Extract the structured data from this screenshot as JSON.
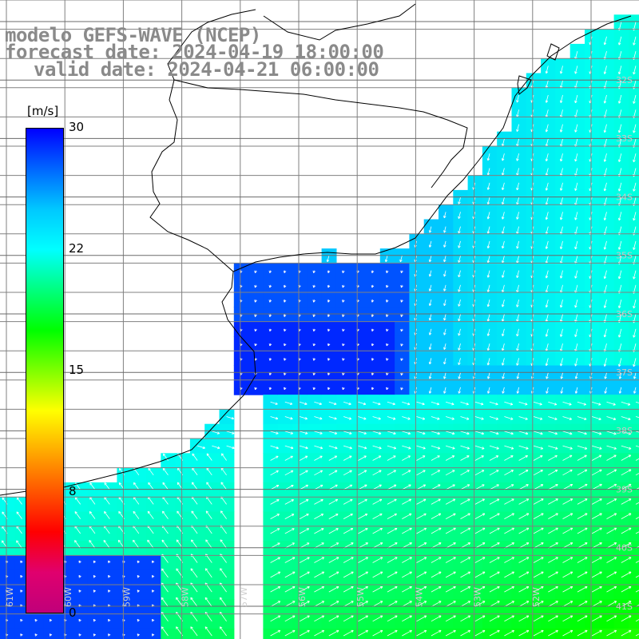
{
  "title": {
    "line1": "modelo GEFS-WAVE (NCEP)",
    "line2": "forecast date: 2024-04-19 18:00:00",
    "line3": "valid date: 2024-04-21 06:00:00"
  },
  "colorbar": {
    "unit": "[m/s]",
    "ticks": [
      "30",
      "22",
      "15",
      "8",
      "0"
    ],
    "min": 0,
    "max": 30,
    "colors": [
      "#0000ff",
      "#0066ff",
      "#00c8ff",
      "#00ffff",
      "#00ff7f",
      "#00ff00",
      "#7fff00",
      "#ffff00",
      "#ffaa00",
      "#ff5500",
      "#ff0000",
      "#e0006e",
      "#c0007a"
    ]
  },
  "map": {
    "latitude_labels": [
      "32S",
      "33S",
      "34S",
      "35S",
      "36S",
      "37S",
      "38S",
      "39S",
      "40S",
      "41S"
    ],
    "longitude_labels": [
      "61W",
      "60W",
      "59W",
      "58W",
      "57W",
      "56W",
      "55W",
      "54W",
      "53W",
      "52W"
    ],
    "land_color": "#ffffff",
    "grid_color": "#808080",
    "coast_color": "#000000",
    "arrow_color": "#ffffff"
  }
}
